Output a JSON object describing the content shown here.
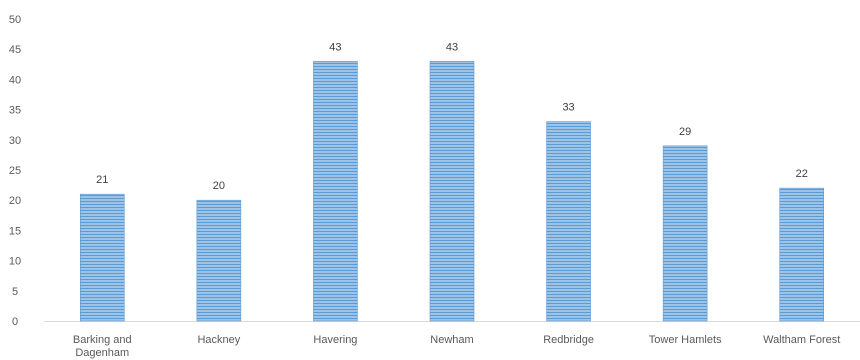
{
  "chart_data": {
    "type": "bar",
    "categories": [
      "Barking and Dagenham",
      "Hackney",
      "Havering",
      "Newham",
      "Redbridge",
      "Tower Hamlets",
      "Waltham Forest"
    ],
    "values": [
      21,
      20,
      43,
      43,
      33,
      29,
      22
    ],
    "data_labels": [
      "21",
      "20",
      "43",
      "43",
      "33",
      "29",
      "22"
    ],
    "yticks": [
      0,
      5,
      10,
      15,
      20,
      25,
      30,
      35,
      40,
      45,
      50
    ],
    "ylim": [
      0,
      50
    ],
    "grid": false,
    "legend": "none",
    "bar_color": "#9dc3e6",
    "bar_stripe_color": "#5b9bd5",
    "axis_color": "#d9d9d9"
  }
}
